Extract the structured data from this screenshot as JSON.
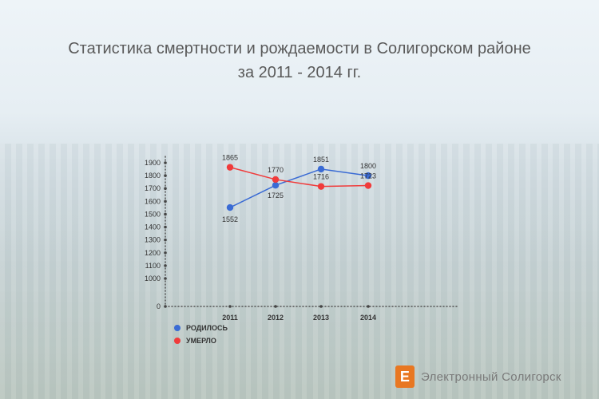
{
  "title": {
    "line1": "Статистика смертности и рождаемости в Солигорском районе",
    "line2": "за 2011 - 2014 гг."
  },
  "colors": {
    "born": "#3a6bd4",
    "died": "#f03b3b",
    "axis": "#555555"
  },
  "legend": {
    "born": "РОДИЛОСЬ",
    "died": "УМЕРЛО"
  },
  "brand": {
    "logo_letter": "Е",
    "name": "Электронный Солигорск"
  },
  "chart_data": {
    "type": "line",
    "categories": [
      "2011",
      "2012",
      "2013",
      "2014"
    ],
    "yticks": [
      "1900",
      "1800",
      "1700",
      "1600",
      "1500",
      "1400",
      "1300",
      "1200",
      "1100",
      "1000",
      "0"
    ],
    "series": [
      {
        "name": "РОДИЛОСЬ",
        "values": [
          1552,
          1725,
          1851,
          1800
        ]
      },
      {
        "name": "УМЕРЛО",
        "values": [
          1865,
          1770,
          1716,
          1723
        ]
      }
    ],
    "ylim": [
      0,
      1900
    ],
    "legend_position": "bottom-left",
    "grid": false
  }
}
